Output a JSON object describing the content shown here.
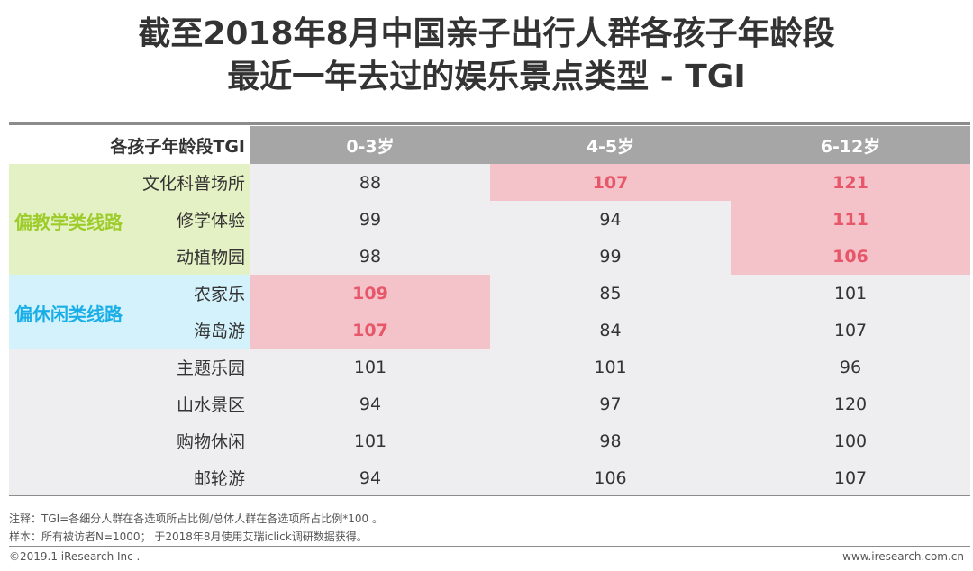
{
  "title_line1": "截至2018年8月中国亲子出行人群各孩子年龄段",
  "title_line2": "最近一年去过的娱乐景点类型 - TGI",
  "header_label": "各孩子年龄段TGI",
  "groups": [
    {
      "label": "偏教学类线路",
      "color": "#9dcc2a",
      "bg": "#e4f1c4"
    },
    {
      "label": "偏休闲类线路",
      "color": "#1aaee8",
      "bg": "#d4f2fb"
    }
  ],
  "colors": {
    "header_bg": "#a6a6a6",
    "table_bg": "#eeedef",
    "highlight_bg": "#f4c3c9",
    "highlight_text": "#e8566a"
  },
  "chart_data": {
    "type": "table",
    "columns": [
      "0-3岁",
      "4-5岁",
      "6-12岁"
    ],
    "rows": [
      {
        "label": "文化科普场所",
        "group": 0,
        "values": [
          88,
          107,
          121
        ],
        "highlight": [
          false,
          true,
          true
        ]
      },
      {
        "label": "修学体验",
        "group": 0,
        "values": [
          99,
          94,
          111
        ],
        "highlight": [
          false,
          false,
          true
        ]
      },
      {
        "label": "动植物园",
        "group": 0,
        "values": [
          98,
          99,
          106
        ],
        "highlight": [
          false,
          false,
          true
        ]
      },
      {
        "label": "农家乐",
        "group": 1,
        "values": [
          109,
          85,
          101
        ],
        "highlight": [
          true,
          false,
          false
        ]
      },
      {
        "label": "海岛游",
        "group": 1,
        "values": [
          107,
          84,
          107
        ],
        "highlight": [
          true,
          false,
          false
        ]
      },
      {
        "label": "主题乐园",
        "group": null,
        "values": [
          101,
          101,
          96
        ],
        "highlight": [
          false,
          false,
          false
        ]
      },
      {
        "label": "山水景区",
        "group": null,
        "values": [
          94,
          97,
          120
        ],
        "highlight": [
          false,
          false,
          false
        ]
      },
      {
        "label": "购物休闲",
        "group": null,
        "values": [
          101,
          98,
          100
        ],
        "highlight": [
          false,
          false,
          false
        ]
      },
      {
        "label": "邮轮游",
        "group": null,
        "values": [
          94,
          106,
          107
        ],
        "highlight": [
          false,
          false,
          false
        ]
      }
    ]
  },
  "notes": {
    "note1": "注释：TGI=各细分人群在各选项所占比例/总体人群在各选项所占比例*100 。",
    "note2": "样本：所有被访者N=1000； 于2018年8月使用艾瑞iclick调研数据获得。"
  },
  "copyright": "©2019.1 iResearch Inc .",
  "website": "www.iresearch.com.cn"
}
